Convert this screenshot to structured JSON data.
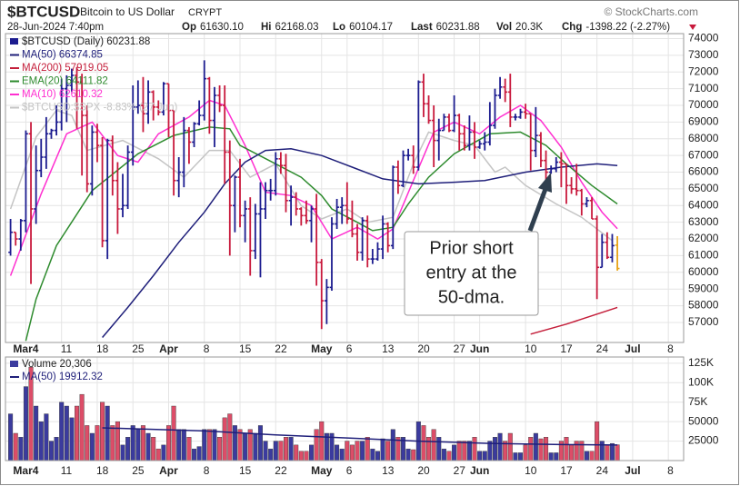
{
  "header": {
    "symbol": "$BTCUSD",
    "name": "Bitcoin to US Dollar",
    "exchange": "CRYPT",
    "credit": "© StockCharts.com",
    "date": "28-Jun-2024 7:40pm",
    "quote": [
      {
        "label": "Op",
        "value": "61630.10"
      },
      {
        "label": "Hi",
        "value": "62168.03"
      },
      {
        "label": "Lo",
        "value": "60104.17"
      },
      {
        "label": "Last",
        "value": "60231.88"
      },
      {
        "label": "Vol",
        "value": "20.3K"
      },
      {
        "label": "Chg",
        "value": "-1398.22 (-2.27%)"
      }
    ]
  },
  "chart_data": {
    "type": "ohlc",
    "name": "$BTCUSD (Daily) 60231.88",
    "up_color": "#1c1c8f",
    "down_color": "#c8193c",
    "last_color": "#e8a317",
    "volume_up_color": "#3b3b9e",
    "volume_down_color": "#dc4d68",
    "grid": true,
    "x": [
      "2024-03-01",
      "2024-03-02",
      "2024-03-03",
      "2024-03-04",
      "2024-03-05",
      "2024-03-06",
      "2024-03-07",
      "2024-03-08",
      "2024-03-09",
      "2024-03-10",
      "2024-03-11",
      "2024-03-12",
      "2024-03-13",
      "2024-03-14",
      "2024-03-15",
      "2024-03-16",
      "2024-03-17",
      "2024-03-18",
      "2024-03-19",
      "2024-03-20",
      "2024-03-21",
      "2024-03-22",
      "2024-03-23",
      "2024-03-24",
      "2024-03-25",
      "2024-03-26",
      "2024-03-27",
      "2024-03-28",
      "2024-03-29",
      "2024-03-30",
      "2024-03-31",
      "2024-04-01",
      "2024-04-02",
      "2024-04-03",
      "2024-04-04",
      "2024-04-05",
      "2024-04-06",
      "2024-04-07",
      "2024-04-08",
      "2024-04-09",
      "2024-04-10",
      "2024-04-11",
      "2024-04-12",
      "2024-04-13",
      "2024-04-14",
      "2024-04-15",
      "2024-04-16",
      "2024-04-17",
      "2024-04-18",
      "2024-04-19",
      "2024-04-20",
      "2024-04-21",
      "2024-04-22",
      "2024-04-23",
      "2024-04-24",
      "2024-04-25",
      "2024-04-26",
      "2024-04-27",
      "2024-04-28",
      "2024-04-29",
      "2024-04-30",
      "2024-05-01",
      "2024-05-02",
      "2024-05-03",
      "2024-05-04",
      "2024-05-05",
      "2024-05-06",
      "2024-05-07",
      "2024-05-08",
      "2024-05-09",
      "2024-05-10",
      "2024-05-11",
      "2024-05-12",
      "2024-05-13",
      "2024-05-14",
      "2024-05-15",
      "2024-05-16",
      "2024-05-17",
      "2024-05-18",
      "2024-05-19",
      "2024-05-20",
      "2024-05-21",
      "2024-05-22",
      "2024-05-23",
      "2024-05-24",
      "2024-05-25",
      "2024-05-26",
      "2024-05-27",
      "2024-05-28",
      "2024-05-29",
      "2024-05-30",
      "2024-05-31",
      "2024-06-01",
      "2024-06-02",
      "2024-06-03",
      "2024-06-04",
      "2024-06-05",
      "2024-06-06",
      "2024-06-07",
      "2024-06-08",
      "2024-06-09",
      "2024-06-10",
      "2024-06-11",
      "2024-06-12",
      "2024-06-13",
      "2024-06-14",
      "2024-06-15",
      "2024-06-16",
      "2024-06-17",
      "2024-06-18",
      "2024-06-19",
      "2024-06-20",
      "2024-06-21",
      "2024-06-22",
      "2024-06-23",
      "2024-06-24",
      "2024-06-25",
      "2024-06-26",
      "2024-06-27",
      "2024-06-28"
    ],
    "open": [
      61200,
      62400,
      62000,
      63100,
      68300,
      63800,
      66100,
      66900,
      68300,
      68500,
      69000,
      71000,
      71200,
      71800,
      71400,
      69400,
      65300,
      68400,
      67600,
      61900,
      67900,
      65500,
      63800,
      64000,
      67200,
      69900,
      70000,
      69500,
      70800,
      69900,
      69600,
      71300,
      69700,
      65500,
      66000,
      68500,
      67800,
      68900,
      69400,
      71600,
      69100,
      70600,
      70000,
      67200,
      64000,
      65700,
      63400,
      63800,
      61300,
      63500,
      63800,
      64900,
      64900,
      66800,
      66400,
      64300,
      64500,
      63800,
      63400,
      63100,
      63800,
      60600,
      58300,
      59100,
      62900,
      63900,
      64000,
      63200,
      62300,
      61200,
      63100,
      60800,
      60800,
      61400,
      62900,
      61600,
      66300,
      65200,
      67000,
      67000,
      66300,
      71400,
      70100,
      69100,
      67900,
      68500,
      69300,
      68500,
      69400,
      68300,
      67600,
      68400,
      67500,
      67700,
      67800,
      68800,
      70600,
      71100,
      70800,
      69300,
      69300,
      69600,
      69500,
      67300,
      68200,
      66700,
      66000,
      66200,
      66600,
      66500,
      65200,
      65000,
      64900,
      64100,
      64300,
      63200,
      60300,
      61800,
      60900,
      61630.1
    ],
    "high": [
      63200,
      62400,
      63200,
      68500,
      69000,
      67600,
      68000,
      69300,
      68600,
      70000,
      71600,
      71800,
      72200,
      72300,
      71900,
      70000,
      68800,
      68900,
      68100,
      68000,
      68200,
      66600,
      65900,
      67600,
      71200,
      71500,
      71700,
      71500,
      70900,
      70300,
      71400,
      71300,
      69700,
      66900,
      69300,
      68700,
      69000,
      70300,
      72700,
      71700,
      71100,
      71200,
      71200,
      67900,
      65800,
      66800,
      64300,
      64500,
      64100,
      65400,
      65400,
      65600,
      67200,
      67200,
      67100,
      65200,
      64800,
      63900,
      64300,
      64000,
      64700,
      60800,
      59600,
      63300,
      64400,
      64500,
      65400,
      64300,
      62900,
      63300,
      63400,
      61400,
      61800,
      63400,
      63000,
      66400,
      66700,
      67300,
      67400,
      67600,
      71500,
      71900,
      70600,
      70000,
      69200,
      69500,
      69500,
      70600,
      69500,
      68800,
      69400,
      69000,
      67900,
      68400,
      70200,
      71000,
      71700,
      71600,
      71900,
      69500,
      69800,
      70100,
      69500,
      69900,
      68400,
      67300,
      66400,
      66900,
      67200,
      66500,
      65700,
      66500,
      65000,
      64500,
      64500,
      63400,
      62300,
      62400,
      62300,
      62168.03
    ],
    "low": [
      61000,
      61600,
      61300,
      62400,
      59300,
      62900,
      65700,
      66200,
      68000,
      68200,
      68500,
      69000,
      70800,
      68600,
      65800,
      64800,
      64600,
      66600,
      61500,
      60800,
      64600,
      62300,
      63300,
      63800,
      66400,
      69500,
      68400,
      68900,
      69100,
      69400,
      69400,
      68100,
      64600,
      64500,
      65100,
      66500,
      67500,
      68800,
      69100,
      68300,
      67500,
      69600,
      65300,
      61000,
      62400,
      62700,
      61800,
      59800,
      60800,
      59700,
      63200,
      64300,
      64600,
      65900,
      63600,
      62800,
      63400,
      62800,
      62900,
      61800,
      59200,
      56600,
      56900,
      58900,
      62600,
      62900,
      62900,
      62100,
      60700,
      60700,
      60300,
      60500,
      60700,
      60800,
      61200,
      61400,
      64700,
      65100,
      66700,
      65900,
      66100,
      69300,
      68900,
      66300,
      66700,
      68500,
      68400,
      68400,
      67300,
      67300,
      67300,
      66800,
      67400,
      67300,
      67600,
      68600,
      70400,
      70200,
      68700,
      69100,
      69200,
      69200,
      66100,
      66900,
      66300,
      65100,
      65900,
      66000,
      65100,
      64100,
      64700,
      64600,
      63400,
      63900,
      63200,
      58400,
      60300,
      60800,
      60600,
      60104.17
    ],
    "close": [
      62400,
      62000,
      63100,
      68300,
      63800,
      66100,
      66900,
      68300,
      68500,
      69000,
      71000,
      71200,
      71800,
      71400,
      69400,
      65300,
      68400,
      67600,
      61900,
      67900,
      65500,
      63800,
      64000,
      67200,
      69900,
      70000,
      69500,
      70800,
      69900,
      69600,
      71300,
      69700,
      65500,
      66000,
      68500,
      67800,
      68900,
      69400,
      71600,
      69100,
      70600,
      70000,
      67200,
      64000,
      65700,
      63400,
      63800,
      61300,
      63500,
      63800,
      64900,
      64900,
      66800,
      66400,
      64300,
      64500,
      63800,
      63400,
      63100,
      63800,
      60600,
      58300,
      59100,
      62900,
      63900,
      64000,
      63200,
      62300,
      61200,
      63100,
      60800,
      60800,
      61400,
      62900,
      61600,
      66300,
      65200,
      67000,
      67000,
      66300,
      71400,
      70100,
      69100,
      67900,
      68500,
      69300,
      68500,
      69400,
      68300,
      67600,
      68400,
      67500,
      67700,
      67800,
      68800,
      70600,
      71100,
      70800,
      69300,
      69300,
      69600,
      69500,
      67300,
      68200,
      66700,
      66000,
      66200,
      66600,
      66500,
      65200,
      65000,
      64900,
      64100,
      64300,
      63200,
      60300,
      61800,
      60900,
      61600,
      60231.88
    ],
    "series": [
      {
        "name": "MA(50) 66374.85",
        "color": "#1f1f7a",
        "x": [
          "2024-03-19",
          "2024-03-24",
          "2024-03-29",
          "2024-04-03",
          "2024-04-08",
          "2024-04-12",
          "2024-04-16",
          "2024-04-20",
          "2024-04-25",
          "2024-05-01",
          "2024-05-07",
          "2024-05-13",
          "2024-05-20",
          "2024-05-27",
          "2024-06-02",
          "2024-06-10",
          "2024-06-17",
          "2024-06-24",
          "2024-06-28"
        ],
        "values": [
          56100,
          57900,
          59800,
          61800,
          63600,
          65300,
          66600,
          67300,
          67400,
          67000,
          66300,
          65600,
          65300,
          65400,
          65500,
          66000,
          66300,
          66500,
          66400
        ]
      },
      {
        "name": "MA(200) 57919.05",
        "color": "#c41e3a",
        "x": [
          "2024-06-11",
          "2024-06-18",
          "2024-06-24",
          "2024-06-28"
        ],
        "values": [
          56300,
          56900,
          57500,
          57900
        ]
      },
      {
        "name": "EMA(20) 64111.82",
        "color": "#2e8b2e",
        "x": [
          "2024-03-04",
          "2024-03-06",
          "2024-03-10",
          "2024-03-17",
          "2024-03-26",
          "2024-04-02",
          "2024-04-09",
          "2024-04-13",
          "2024-04-15",
          "2024-04-22",
          "2024-04-27",
          "2024-05-01",
          "2024-05-03",
          "2024-05-08",
          "2024-05-11",
          "2024-05-15",
          "2024-05-18",
          "2024-05-22",
          "2024-05-27",
          "2024-06-03",
          "2024-06-09",
          "2024-06-14",
          "2024-06-18",
          "2024-06-23",
          "2024-06-28"
        ],
        "values": [
          55900,
          58400,
          61600,
          64900,
          67100,
          68200,
          68700,
          68600,
          67600,
          66500,
          65700,
          64600,
          63800,
          63000,
          62500,
          62700,
          64100,
          65700,
          67100,
          68300,
          68400,
          67600,
          66500,
          65200,
          64100
        ]
      },
      {
        "name": "MA(10) 62610.32",
        "color": "#ff2fd0",
        "x": [
          "2024-03-01",
          "2024-03-07",
          "2024-03-12",
          "2024-03-17",
          "2024-03-22",
          "2024-03-26",
          "2024-03-30",
          "2024-04-05",
          "2024-04-09",
          "2024-04-12",
          "2024-04-16",
          "2024-04-20",
          "2024-04-25",
          "2024-04-29",
          "2024-05-03",
          "2024-05-08",
          "2024-05-12",
          "2024-05-15",
          "2024-05-19",
          "2024-05-23",
          "2024-05-27",
          "2024-06-01",
          "2024-06-05",
          "2024-06-09",
          "2024-06-13",
          "2024-06-17",
          "2024-06-21",
          "2024-06-25",
          "2024-06-28"
        ],
        "values": [
          59800,
          64700,
          68300,
          69000,
          67000,
          66600,
          68300,
          69300,
          70300,
          70000,
          67600,
          64800,
          64600,
          64000,
          62000,
          62700,
          62000,
          62600,
          65500,
          68400,
          69000,
          68300,
          69300,
          70000,
          69100,
          67500,
          65400,
          63600,
          62610.32
        ]
      },
      {
        "name": "$BTCUSD:$SPX -8.83% (27 Jun)",
        "color": "#c4c4c4",
        "x": [
          "2024-03-01",
          "2024-03-06",
          "2024-03-10",
          "2024-03-13",
          "2024-03-16",
          "2024-03-23",
          "2024-03-30",
          "2024-04-04",
          "2024-04-09",
          "2024-04-13",
          "2024-04-17",
          "2024-04-22",
          "2024-04-27",
          "2024-05-01",
          "2024-05-06",
          "2024-05-10",
          "2024-05-15",
          "2024-05-19",
          "2024-05-22",
          "2024-05-27",
          "2024-05-31",
          "2024-06-04",
          "2024-06-06",
          "2024-06-10",
          "2024-06-16",
          "2024-06-21",
          "2024-06-27"
        ],
        "values": [
          63800,
          68100,
          69700,
          69400,
          67300,
          67900,
          66800,
          65700,
          67300,
          67300,
          65700,
          66500,
          64000,
          63200,
          63800,
          63000,
          63300,
          66500,
          68400,
          67900,
          67600,
          66000,
          66300,
          65200,
          64100,
          63300,
          61900
        ]
      },
      {
        "name": "Volume 20,306",
        "type": "bar",
        "axis": "y2",
        "values": [
          60000,
          35000,
          30000,
          95000,
          120000,
          70000,
          50000,
          60000,
          25000,
          30000,
          75000,
          70000,
          55000,
          70000,
          85000,
          45000,
          35000,
          45000,
          75000,
          70000,
          45000,
          50000,
          20000,
          30000,
          45000,
          40000,
          45000,
          35000,
          30000,
          15000,
          20000,
          45000,
          70000,
          40000,
          40000,
          30000,
          15000,
          18000,
          40000,
          40000,
          40000,
          30000,
          55000,
          60000,
          45000,
          40000,
          35000,
          40000,
          35000,
          45000,
          25000,
          15000,
          25000,
          25000,
          30000,
          30000,
          20000,
          12000,
          12000,
          20000,
          40000,
          50000,
          35000,
          35000,
          20000,
          15000,
          25000,
          20000,
          25000,
          25000,
          30000,
          15000,
          12000,
          28000,
          25000,
          40000,
          30000,
          30000,
          15000,
          14000,
          50000,
          45000,
          30000,
          40000,
          30000,
          15000,
          12000,
          20000,
          25000,
          25000,
          25000,
          30000,
          12000,
          12000,
          25000,
          30000,
          35000,
          25000,
          35000,
          10000,
          10000,
          20000,
          30000,
          35000,
          28000,
          30000,
          10000,
          10000,
          25000,
          30000,
          20000,
          25000,
          25000,
          12000,
          12000,
          50000,
          25000,
          20000,
          22000,
          20306
        ]
      },
      {
        "name": "MA(50) 19912.32",
        "axis": "y2",
        "color": "#1f1f7a",
        "x": [
          "2024-03-19",
          "2024-04-08",
          "2024-04-22",
          "2024-05-06",
          "2024-05-20",
          "2024-06-03",
          "2024-06-17",
          "2024-06-28"
        ],
        "values": [
          42000,
          38000,
          33000,
          29000,
          25000,
          22000,
          20500,
          19912.32
        ]
      }
    ],
    "xlim": [
      "2024-02-29",
      "2024-07-11"
    ],
    "xticks": [
      {
        "value": "2024-03-04",
        "label": "Mar4"
      },
      {
        "value": "2024-03-11",
        "label": "11"
      },
      {
        "value": "2024-03-18",
        "label": "18"
      },
      {
        "value": "2024-03-25",
        "label": "25"
      },
      {
        "value": "2024-04-01",
        "label": "Apr"
      },
      {
        "value": "2024-04-08",
        "label": "8"
      },
      {
        "value": "2024-04-15",
        "label": "15"
      },
      {
        "value": "2024-04-22",
        "label": "22"
      },
      {
        "value": "2024-05-01",
        "label": "May"
      },
      {
        "value": "2024-05-06",
        "label": "6"
      },
      {
        "value": "2024-05-13",
        "label": "13"
      },
      {
        "value": "2024-05-20",
        "label": "20"
      },
      {
        "value": "2024-05-27",
        "label": "27"
      },
      {
        "value": "2024-06-01",
        "label": "Jun"
      },
      {
        "value": "2024-06-10",
        "label": "10"
      },
      {
        "value": "2024-06-17",
        "label": "17"
      },
      {
        "value": "2024-06-24",
        "label": "24"
      },
      {
        "value": "2024-07-01",
        "label": "Jul"
      },
      {
        "value": "2024-07-08",
        "label": "8"
      }
    ],
    "ylim": [
      55800,
      74300
    ],
    "yticks": [
      57000,
      58000,
      59000,
      60000,
      61000,
      62000,
      63000,
      64000,
      65000,
      66000,
      67000,
      68000,
      69000,
      70000,
      71000,
      72000,
      73000,
      74000
    ],
    "y2lim": [
      0,
      133000
    ],
    "y2ticks": [
      25000,
      50000,
      {
        "value": 75000,
        "label": "75K"
      },
      {
        "value": 100000,
        "label": "100K"
      },
      {
        "value": 125000,
        "label": "125K"
      }
    ],
    "annotation": [
      "Prior short",
      "entry at the",
      "50-dma."
    ]
  }
}
